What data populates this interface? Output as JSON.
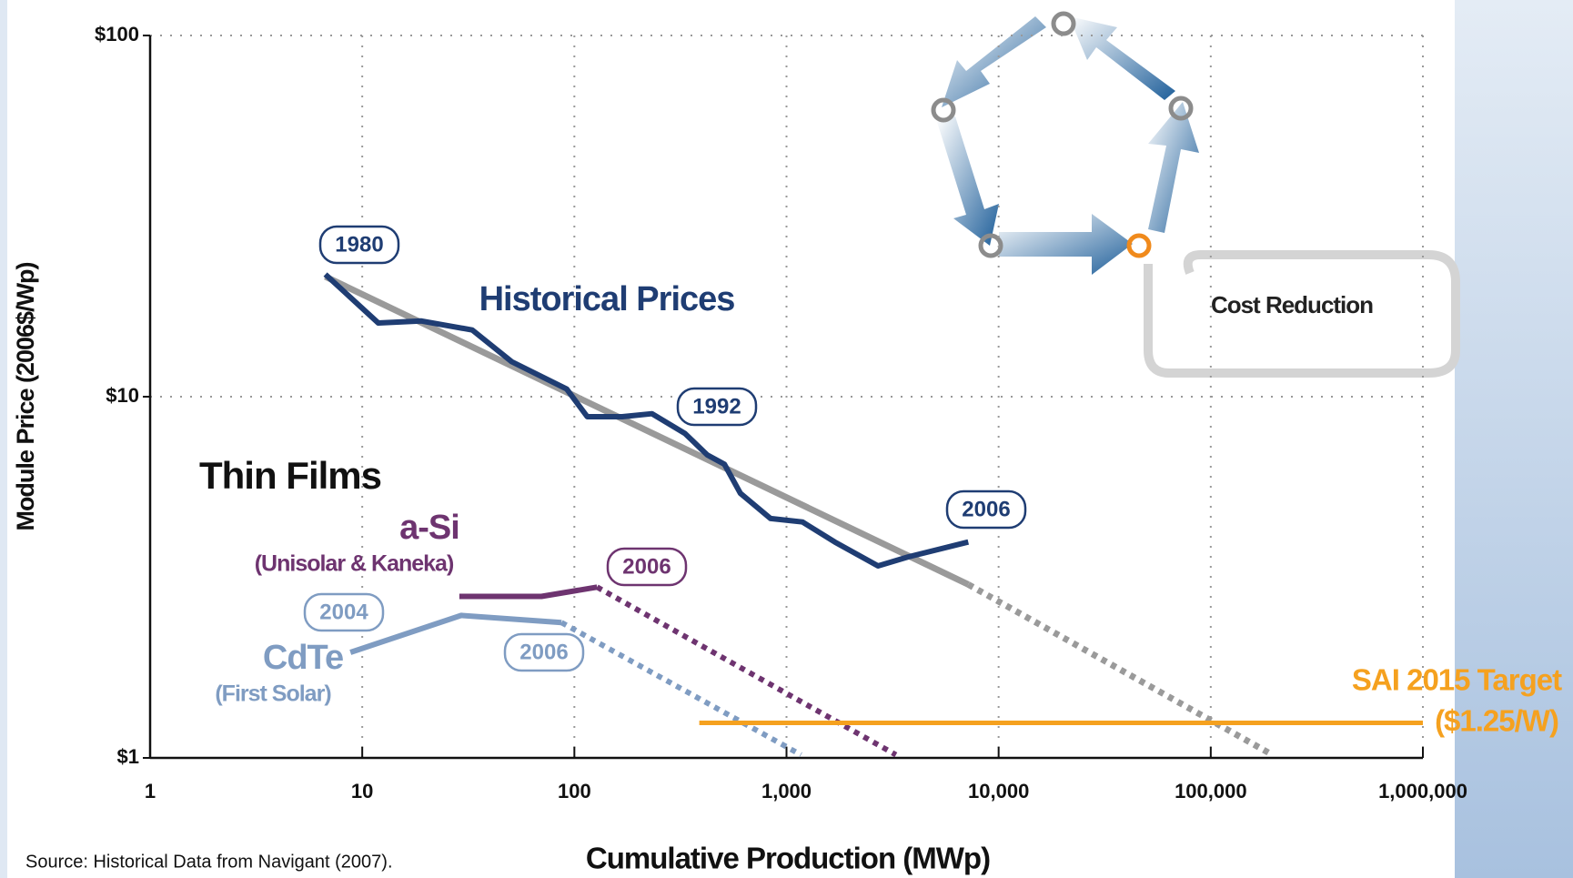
{
  "chart_data": {
    "type": "line",
    "xlabel": "Cumulative Production (MWp)",
    "ylabel": "Module Price (2006$/Wp)",
    "xscale": "log",
    "yscale": "log",
    "xlim": [
      1,
      1000000
    ],
    "ylim": [
      1,
      100
    ],
    "xticks": [
      1,
      10,
      100,
      {
        "value": 1000,
        "label": "1,000"
      },
      {
        "value": 10000,
        "label": "10,000"
      },
      {
        "value": 100000,
        "label": "100,000"
      },
      {
        "value": 1000000,
        "label": "1,000,000"
      }
    ],
    "yticks": [
      {
        "value": 1,
        "label": "$1"
      },
      {
        "value": 10,
        "label": "$10"
      },
      {
        "value": 100,
        "label": "$100"
      }
    ],
    "grid": true,
    "group_label": "Thin Films",
    "trend": {
      "color": "#9a9a9a",
      "x": [
        6.7,
        7190
      ],
      "values": [
        21.5,
        3.02
      ],
      "projection": {
        "x": [
          7190,
          195000
        ],
        "values": [
          3.02,
          1.02
        ]
      }
    },
    "series": [
      {
        "name": "Historical Prices",
        "color": "#1f3d73",
        "x": [
          6.7,
          11.9,
          19,
          33,
          50.6,
          92,
          115,
          168,
          232,
          333,
          423,
          510,
          606,
          841,
          1190,
          1690,
          2700,
          3740,
          7190
        ],
        "values": [
          21.8,
          16.0,
          16.2,
          15.3,
          12.5,
          10.5,
          8.8,
          8.8,
          8.97,
          7.9,
          6.9,
          6.5,
          5.4,
          4.6,
          4.5,
          3.96,
          3.4,
          3.6,
          3.96
        ]
      },
      {
        "name": "a-Si",
        "note": "(Unisolar & Kaneka)",
        "color": "#6e3470",
        "x": [
          28.7,
          70,
          128
        ],
        "values": [
          2.8,
          2.8,
          2.97
        ],
        "projection": {
          "x": [
            128,
            3280
          ],
          "values": [
            2.97,
            1.02
          ]
        }
      },
      {
        "name": "CdTe",
        "note": "(First Solar)",
        "color": "#7f9cc2",
        "x": [
          8.8,
          29.3,
          87
        ],
        "values": [
          1.96,
          2.48,
          2.37
        ],
        "projection": {
          "x": [
            87,
            1170
          ],
          "values": [
            2.37,
            1.02
          ]
        }
      }
    ],
    "year_labels": [
      "1980",
      "1992",
      "2006",
      "2006",
      "2004",
      "2006"
    ],
    "target": {
      "label": "SAI 2015 Target",
      "value": 1.25,
      "value_label": "($1.25/W)",
      "x": [
        388,
        1000000
      ],
      "color": "#f5a11f"
    },
    "diagram_label": "Cost Reduction",
    "source": "Source:  Historical Data from Navigant (2007)."
  }
}
